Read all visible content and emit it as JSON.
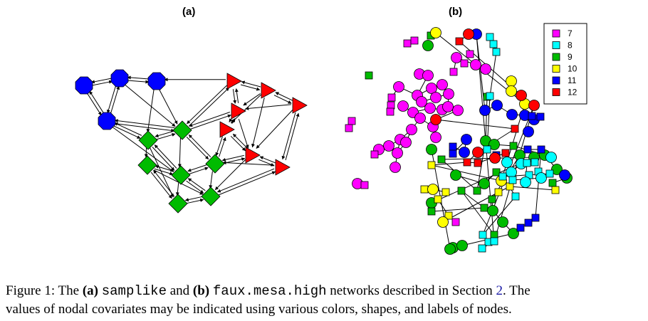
{
  "panels": {
    "a_label": "(a)",
    "b_label": "(b)"
  },
  "legend": {
    "entries": [
      {
        "label": "7",
        "color": "#ff00ff"
      },
      {
        "label": "8",
        "color": "#00ffff"
      },
      {
        "label": "9",
        "color": "#00bb00"
      },
      {
        "label": "10",
        "color": "#ffff00"
      },
      {
        "label": "11",
        "color": "#0000ff"
      },
      {
        "label": "12",
        "color": "#ff0000"
      }
    ]
  },
  "colors": {
    "blue": "#0000ff",
    "green": "#00bb00",
    "red": "#ff0000",
    "magenta": "#ff00ff",
    "cyan": "#00ffff",
    "yellow": "#ffff00"
  },
  "caption": {
    "prefix": "Figure 1: The ",
    "a_bold": "(a)",
    "a_name": "samplike",
    "and": " and ",
    "b_bold": "(b)",
    "b_name": "faux.mesa.high",
    "middle": " networks described in Section ",
    "section_ref": "2",
    "line1_end": ". The",
    "line2": "values of nodal covariates may be indicated using various colors, shapes, and labels of nodes."
  }
}
